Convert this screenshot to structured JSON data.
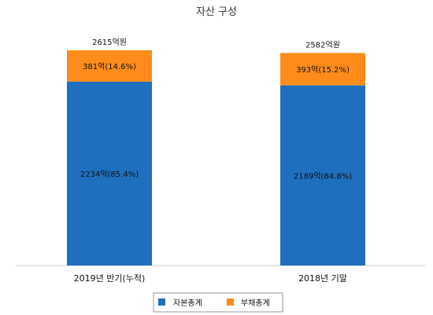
{
  "chart_data": {
    "type": "bar",
    "stacked": true,
    "title": "자산 구성",
    "categories": [
      "2019년 반기(누적)",
      "2018년 기말"
    ],
    "totals": [
      "2615억원",
      "2582억원"
    ],
    "series": [
      {
        "name": "자본총계",
        "color": "#1f6fbf",
        "values": [
          2234,
          2189
        ],
        "labels": [
          "2234억(85.4%)",
          "2189억(84.8%)"
        ]
      },
      {
        "name": "부채총계",
        "color": "#ff8c1a",
        "values": [
          381,
          393
        ],
        "labels": [
          "381억(14.6%)",
          "393억(15.2%)"
        ]
      }
    ],
    "ylim": [
      0,
      2615
    ],
    "grid": false,
    "legend": "bottom"
  }
}
